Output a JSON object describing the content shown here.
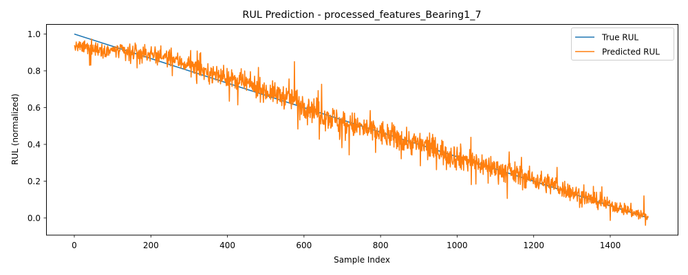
{
  "chart_data": {
    "type": "line",
    "title": "RUL Prediction - processed_features_Bearing1_7",
    "xlabel": "Sample Index",
    "ylabel": "RUL (normalized)",
    "xlim": [
      -75,
      1575
    ],
    "ylim": [
      -0.093,
      1.05
    ],
    "x_ticks": [
      0,
      200,
      400,
      600,
      800,
      1000,
      1200,
      1400
    ],
    "y_ticks": [
      0.0,
      0.2,
      0.4,
      0.6,
      0.8,
      1.0
    ],
    "y_tick_labels": [
      "0.0",
      "0.2",
      "0.4",
      "0.6",
      "0.8",
      "1.0"
    ],
    "grid": false,
    "legend_position": "upper right",
    "n_samples": 1500,
    "series": [
      {
        "name": "True RUL",
        "color": "#1f77b4",
        "kind": "linear",
        "x": [
          0,
          1499
        ],
        "values": [
          1.0,
          0.0
        ]
      },
      {
        "name": "Predicted RUL",
        "color": "#ff7f0e",
        "kind": "noisy-trend",
        "anchor_x": [
          0,
          50,
          100,
          150,
          200,
          250,
          300,
          350,
          400,
          450,
          500,
          550,
          600,
          650,
          700,
          750,
          800,
          850,
          900,
          950,
          1000,
          1050,
          1100,
          1150,
          1200,
          1250,
          1300,
          1350,
          1400,
          1450,
          1499
        ],
        "anchor_mean": [
          0.93,
          0.92,
          0.91,
          0.9,
          0.89,
          0.87,
          0.83,
          0.79,
          0.76,
          0.73,
          0.69,
          0.66,
          0.62,
          0.56,
          0.52,
          0.49,
          0.46,
          0.43,
          0.4,
          0.37,
          0.33,
          0.3,
          0.27,
          0.24,
          0.21,
          0.18,
          0.14,
          0.1,
          0.07,
          0.04,
          0.0
        ],
        "anchor_noise": [
          0.02,
          0.03,
          0.03,
          0.03,
          0.03,
          0.03,
          0.035,
          0.035,
          0.035,
          0.04,
          0.04,
          0.045,
          0.05,
          0.05,
          0.05,
          0.05,
          0.05,
          0.05,
          0.05,
          0.05,
          0.05,
          0.045,
          0.045,
          0.045,
          0.04,
          0.04,
          0.035,
          0.03,
          0.025,
          0.025,
          0.025
        ],
        "notable_points": [
          {
            "x": 575,
            "y": 0.85
          },
          {
            "x": 40,
            "y": 0.83
          },
          {
            "x": 1488,
            "y": 0.12
          },
          {
            "x": 1492,
            "y": -0.04
          }
        ]
      }
    ]
  },
  "legend": {
    "items": [
      {
        "label": "True RUL",
        "color": "#1f77b4"
      },
      {
        "label": "Predicted RUL",
        "color": "#ff7f0e"
      }
    ]
  }
}
